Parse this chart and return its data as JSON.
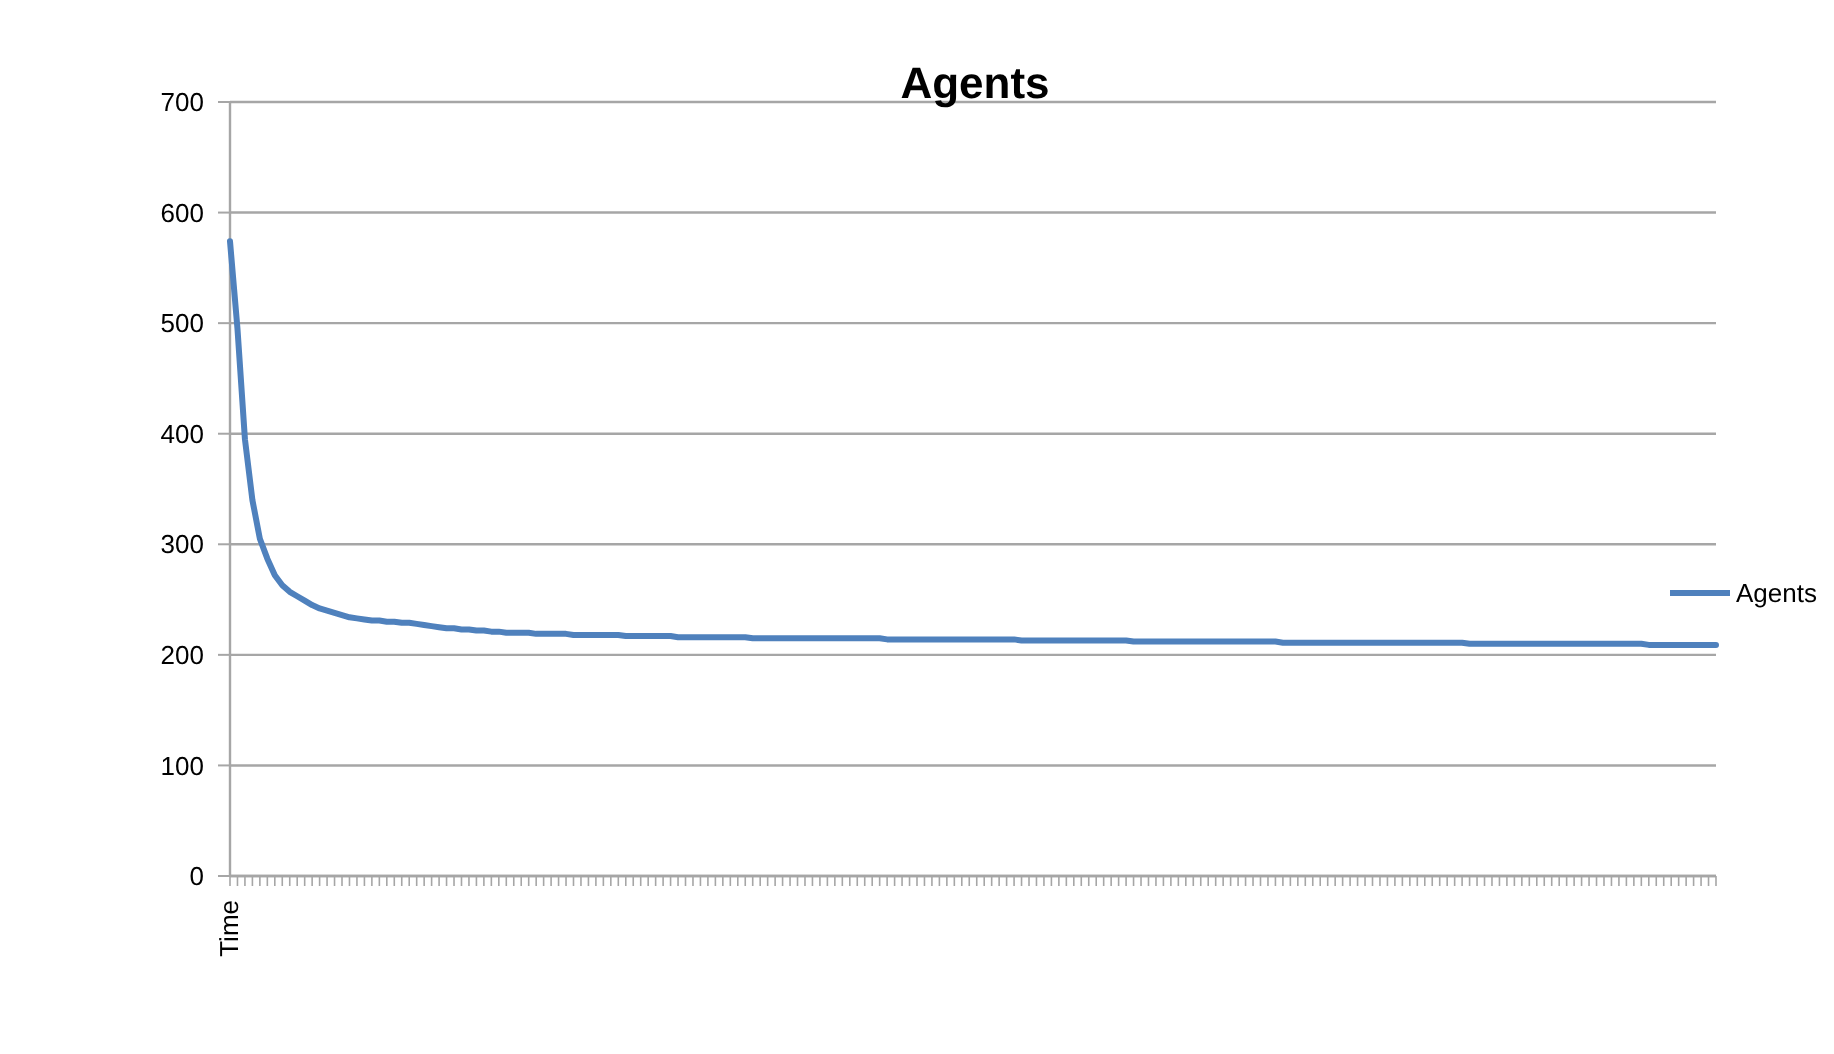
{
  "chart_data": {
    "type": "line",
    "title": "Agents",
    "categories": [
      "Time",
      null,
      null,
      null,
      null,
      null,
      null,
      null,
      null,
      null,
      null,
      null,
      null,
      null,
      null,
      null,
      null,
      null,
      null,
      null,
      null,
      null,
      null,
      null,
      null,
      null,
      null,
      null,
      null,
      null,
      null,
      null,
      null,
      null,
      null,
      null,
      null,
      null,
      null,
      null,
      null,
      null,
      null,
      null,
      null,
      null,
      null,
      null,
      null,
      null,
      null,
      null,
      null,
      null,
      null,
      null,
      null,
      null,
      null,
      null,
      null,
      null,
      null,
      null,
      null,
      null,
      null,
      null,
      null,
      null,
      null,
      null,
      null,
      null,
      null,
      null,
      null,
      null,
      null,
      null,
      null,
      null,
      null,
      null,
      null,
      null,
      null,
      null,
      null,
      null,
      null,
      null,
      null,
      null,
      null,
      null,
      null,
      null,
      null,
      null,
      null,
      null,
      null,
      null,
      null,
      null,
      null,
      null,
      null,
      null,
      null,
      null,
      null,
      null,
      null,
      null,
      null,
      null,
      null,
      null,
      null,
      null,
      null,
      null,
      null,
      null,
      null,
      null,
      null,
      null,
      null,
      null,
      null,
      null,
      null,
      null,
      null,
      null,
      null,
      null,
      null,
      null,
      null,
      null,
      null,
      null,
      null,
      null,
      null,
      null,
      null,
      null,
      null,
      null,
      null,
      null,
      null,
      null,
      null,
      null,
      null,
      null,
      null,
      null,
      null,
      null,
      null,
      null,
      null,
      null,
      null,
      null,
      null,
      null,
      null,
      null,
      null,
      null,
      null,
      null,
      null,
      null,
      null,
      null,
      null,
      null,
      null,
      null,
      null,
      null,
      null,
      null,
      null,
      null,
      null,
      null,
      null,
      null,
      null,
      null
    ],
    "series": [
      {
        "name": "Agents",
        "color": "#4f81bd",
        "values": [
          574,
          495,
          395,
          340,
          305,
          287,
          272,
          263,
          257,
          253,
          249,
          245,
          242,
          240,
          238,
          236,
          234,
          233,
          232,
          231,
          231,
          230,
          230,
          229,
          229,
          228,
          227,
          226,
          225,
          224,
          224,
          223,
          223,
          222,
          222,
          221,
          221,
          220,
          220,
          220,
          220,
          219,
          219,
          219,
          219,
          219,
          218,
          218,
          218,
          218,
          218,
          218,
          218,
          217,
          217,
          217,
          217,
          217,
          217,
          217,
          216,
          216,
          216,
          216,
          216,
          216,
          216,
          216,
          216,
          216,
          215,
          215,
          215,
          215,
          215,
          215,
          215,
          215,
          215,
          215,
          215,
          215,
          215,
          215,
          215,
          215,
          215,
          215,
          214,
          214,
          214,
          214,
          214,
          214,
          214,
          214,
          214,
          214,
          214,
          214,
          214,
          214,
          214,
          214,
          214,
          214,
          213,
          213,
          213,
          213,
          213,
          213,
          213,
          213,
          213,
          213,
          213,
          213,
          213,
          213,
          213,
          212,
          212,
          212,
          212,
          212,
          212,
          212,
          212,
          212,
          212,
          212,
          212,
          212,
          212,
          212,
          212,
          212,
          212,
          212,
          212,
          211,
          211,
          211,
          211,
          211,
          211,
          211,
          211,
          211,
          211,
          211,
          211,
          211,
          211,
          211,
          211,
          211,
          211,
          211,
          211,
          211,
          211,
          211,
          211,
          211,
          210,
          210,
          210,
          210,
          210,
          210,
          210,
          210,
          210,
          210,
          210,
          210,
          210,
          210,
          210,
          210,
          210,
          210,
          210,
          210,
          210,
          210,
          210,
          210,
          209,
          209,
          209,
          209,
          209,
          209,
          209,
          209,
          209,
          209
        ]
      }
    ],
    "ylim": [
      0,
      700
    ],
    "yticks": [
      0,
      100,
      200,
      300,
      400,
      500,
      600,
      700
    ],
    "grid": "y",
    "legend": "right",
    "marker": "none",
    "line_style": "solid"
  }
}
